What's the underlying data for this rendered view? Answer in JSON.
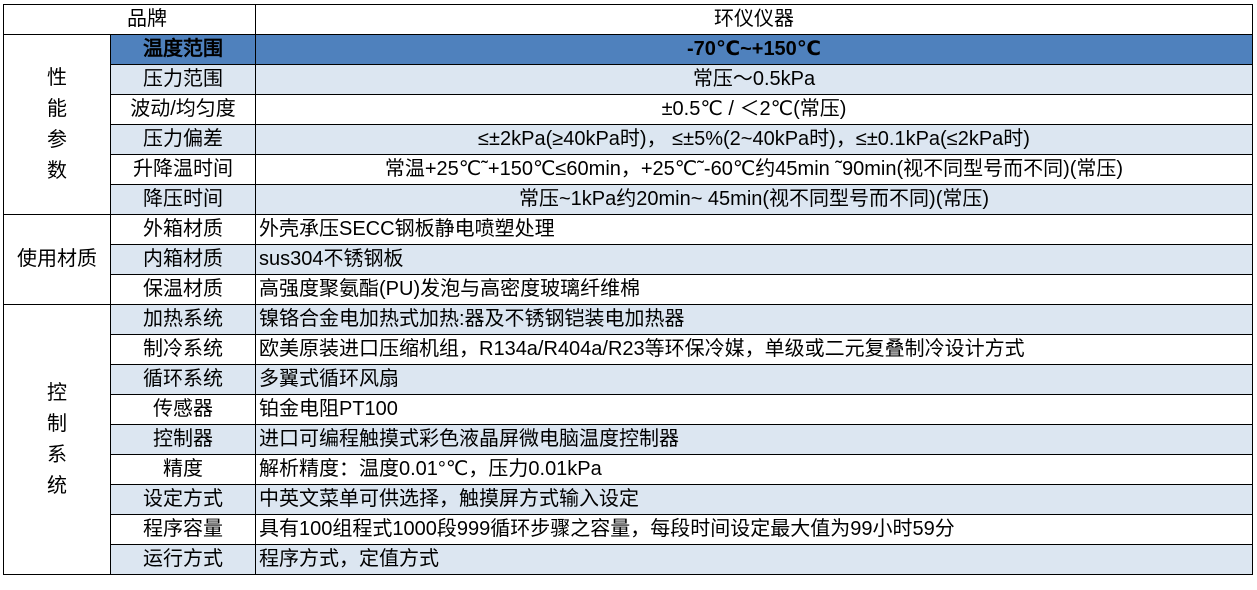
{
  "colors": {
    "highlight": "#4f81bd",
    "light_row": "#dce6f1",
    "border": "#000000"
  },
  "header": {
    "label": "品牌",
    "value": "环仪仪器"
  },
  "groups": [
    {
      "name": "性能参数",
      "vertical": true,
      "rows": [
        {
          "label": "温度范围",
          "value": "-70℃~+150℃",
          "align": "center",
          "style": "highlight"
        },
        {
          "label": "压力范围",
          "value": "常压～0.5kPa",
          "align": "center",
          "style": "light"
        },
        {
          "label": "波动/均匀度",
          "value": "±0.5℃ / ＜2℃(常压)",
          "align": "center",
          "style": "white"
        },
        {
          "label": "压力偏差",
          "value": "≤±2kPa(≥40kPa时)， ≤±5%(2~40kPa时)，≤±0.1kPa(≤2kPa时)",
          "align": "center",
          "style": "light"
        },
        {
          "label": "升降温时间",
          "value": "常温+25℃˜+150℃≤60min，+25℃˜-60℃约45min ˜90min(视不同型号而不同)(常压)",
          "align": "center",
          "style": "white"
        },
        {
          "label": "降压时间",
          "value": "常压~1kPa约20min~ 45min(视不同型号而不同)(常压)",
          "align": "center",
          "style": "light"
        }
      ]
    },
    {
      "name": "使用材质",
      "vertical": false,
      "rows": [
        {
          "label": "外箱材质",
          "value": "外壳承压SECC钢板静电喷塑处理",
          "align": "left",
          "style": "white"
        },
        {
          "label": "内箱材质",
          "value": "sus304不锈钢板",
          "align": "left",
          "style": "light"
        },
        {
          "label": "保温材质",
          "value": "高强度聚氨酯(PU)发泡与高密度玻璃纤维棉",
          "align": "left",
          "style": "white"
        }
      ]
    },
    {
      "name": "控制系统",
      "vertical": true,
      "rows": [
        {
          "label": "加热系统",
          "value": "镍铬合金电加热式加热:器及不锈钢铠装电加热器",
          "align": "left",
          "style": "light"
        },
        {
          "label": "制冷系统",
          "value": "欧美原装进口压缩机组，R134a/R404a/R23等环保冷媒，单级或二元复叠制冷设计方式",
          "align": "left",
          "style": "white"
        },
        {
          "label": "循环系统",
          "value": "多翼式循环风扇",
          "align": "left",
          "style": "light"
        },
        {
          "label": "传感器",
          "value": "铂金电阻PT100",
          "align": "left",
          "style": "white"
        },
        {
          "label": "控制器",
          "value": "进口可编程触摸式彩色液晶屏微电脑温度控制器",
          "align": "left",
          "style": "light"
        },
        {
          "label": "精度",
          "value": "解析精度：温度0.01°℃，压力0.01kPa",
          "align": "left",
          "style": "white"
        },
        {
          "label": "设定方式",
          "value": "中英文菜单可供选择，触摸屏方式输入设定",
          "align": "left",
          "style": "light"
        },
        {
          "label": "程序容量",
          "value": "具有100组程式1000段999循环步骤之容量，每段时间设定最大值为99小时59分",
          "align": "left",
          "style": "white"
        },
        {
          "label": "运行方式",
          "value": "程序方式，定值方式",
          "align": "left",
          "style": "light"
        }
      ]
    }
  ]
}
